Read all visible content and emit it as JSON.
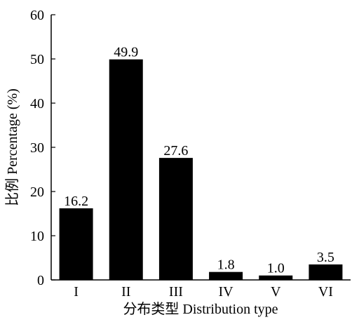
{
  "chart_data": {
    "type": "bar",
    "categories": [
      "I",
      "II",
      "III",
      "IV",
      "V",
      "VI"
    ],
    "values": [
      16.2,
      49.9,
      27.6,
      1.8,
      1.0,
      3.5
    ],
    "data_labels": [
      "16.2",
      "49.9",
      "27.6",
      "1.8",
      "1.0",
      "3.5"
    ],
    "title": "",
    "xlabel": "分布类型 Distribution type",
    "ylabel": "比例 Percentage (%)",
    "ylim": [
      0,
      60
    ],
    "yticks": [
      0,
      10,
      20,
      30,
      40,
      50,
      60
    ],
    "ytick_labels": [
      "0",
      "10",
      "20",
      "30",
      "40",
      "50",
      "60"
    ],
    "grid": false,
    "bar_color": "#000000"
  }
}
